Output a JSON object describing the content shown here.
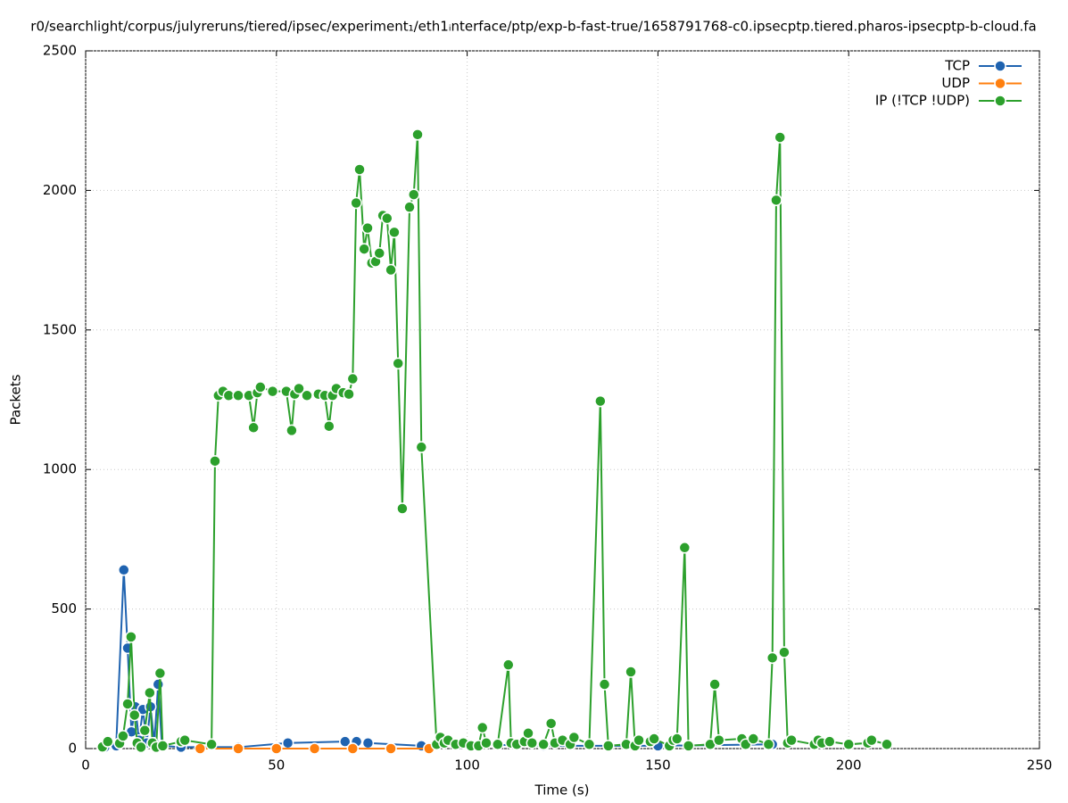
{
  "chart_data": {
    "type": "line",
    "title": "r0/searchlight/corpus/julyreruns/tiered/ipsec/experiment₁/eth1ᵢnterface/ptp/exp-b-fast-true/1658791768-c0.ipsecptp.tiered.pharos-ipsecptp-b-cloud.fa",
    "x_label": "Time (s)",
    "y_label": "Packets",
    "xlim": [
      0,
      250
    ],
    "xticks": [
      0,
      50,
      100,
      150,
      200,
      250
    ],
    "ylim": [
      0,
      2500
    ],
    "yticks": [
      0,
      500,
      1000,
      1500,
      2000,
      2500
    ],
    "grid": true,
    "legend": "top-right",
    "series": [
      {
        "name": "TCP",
        "color": "#1f63b0",
        "x": [
          5,
          8,
          10,
          11,
          12,
          13,
          14,
          15,
          16,
          17,
          18,
          19,
          20,
          25,
          40,
          53,
          68,
          71,
          74,
          88,
          100,
          120,
          150,
          180
        ],
        "values": [
          5,
          10,
          640,
          360,
          60,
          150,
          30,
          140,
          20,
          150,
          20,
          230,
          10,
          5,
          5,
          20,
          25,
          25,
          20,
          10,
          15,
          10,
          10,
          15
        ]
      },
      {
        "name": "UDP",
        "color": "#ff7f0e",
        "x": [
          30,
          40,
          50,
          60,
          70,
          80,
          90
        ],
        "values": [
          0,
          0,
          0,
          0,
          0,
          0,
          0
        ]
      },
      {
        "name": "IP (!TCP  !UDP)",
        "color": "#2ca02c",
        "x": [
          4.4,
          5.8,
          8.9,
          9.8,
          11,
          11.9,
          12.8,
          13.5,
          14.5,
          15.5,
          16.8,
          17.5,
          18.5,
          19.5,
          20.2,
          25,
          26,
          33,
          33.9,
          34.8,
          36,
          37.5,
          40,
          42.8,
          44,
          45,
          45.8,
          49,
          52.6,
          54,
          54.8,
          55.9,
          58,
          61,
          62.7,
          63.8,
          64.7,
          65.7,
          67.5,
          69,
          70,
          70.9,
          71.8,
          73,
          73.9,
          75,
          76,
          77,
          77.9,
          79,
          80,
          80.9,
          81.9,
          83,
          84.9,
          86,
          87,
          88,
          92,
          93,
          94,
          95,
          97,
          99,
          101,
          103,
          104,
          105,
          108,
          110.8,
          111.5,
          113,
          115,
          116,
          117,
          120,
          122,
          123,
          125,
          127,
          128,
          132,
          134.9,
          136,
          137,
          141.7,
          142.9,
          144,
          145,
          148,
          149,
          153,
          154,
          155,
          157,
          158,
          163.7,
          164.9,
          166,
          172,
          173,
          175,
          179,
          180,
          181,
          182,
          183.1,
          184,
          185,
          191,
          192,
          193,
          195,
          200,
          205,
          206,
          210
        ],
        "values": [
          6,
          25,
          19,
          45,
          160,
          400,
          120,
          20,
          5,
          65,
          200,
          20,
          5,
          270,
          10,
          25,
          30,
          15,
          1030,
          1265,
          1280,
          1265,
          1265,
          1265,
          1150,
          1275,
          1295,
          1280,
          1280,
          1140,
          1270,
          1290,
          1265,
          1270,
          1265,
          1155,
          1265,
          1290,
          1275,
          1270,
          1325,
          1955,
          2075,
          1790,
          1865,
          1740,
          1745,
          1775,
          1910,
          1900,
          1715,
          1850,
          1380,
          860,
          1940,
          1985,
          2200,
          1080,
          15,
          40,
          20,
          30,
          15,
          20,
          10,
          10,
          75,
          20,
          15,
          300,
          20,
          15,
          25,
          55,
          20,
          15,
          90,
          20,
          30,
          15,
          40,
          15,
          1245,
          230,
          10,
          15,
          275,
          10,
          30,
          25,
          35,
          10,
          30,
          35,
          720,
          10,
          15,
          230,
          30,
          35,
          15,
          35,
          15,
          325,
          1965,
          2190,
          345,
          20,
          30,
          15,
          30,
          20,
          25,
          15,
          20,
          30,
          15
        ]
      }
    ]
  }
}
